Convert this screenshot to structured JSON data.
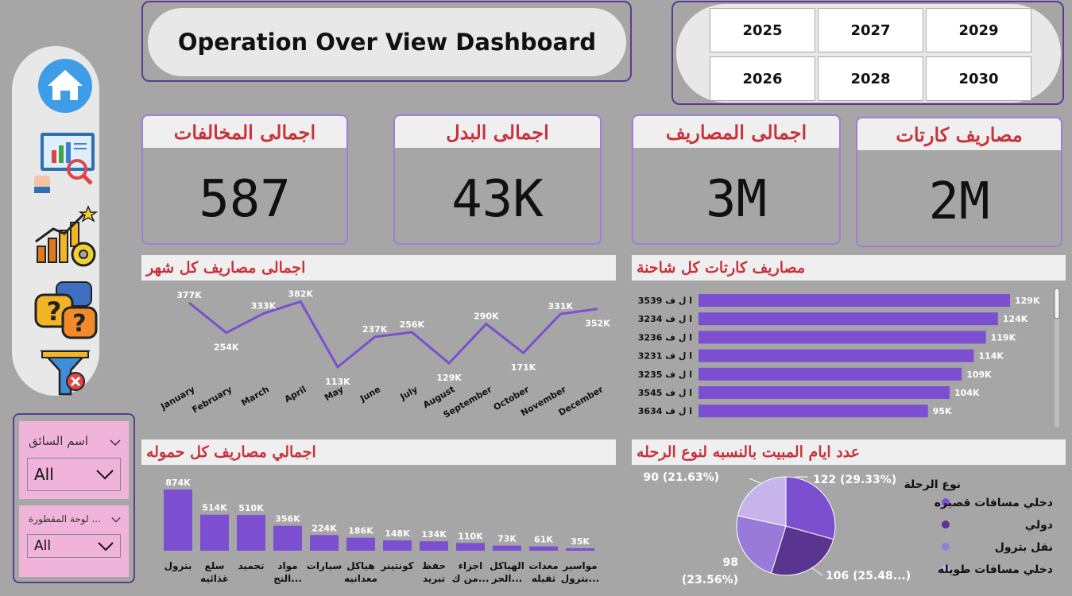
{
  "title": "Operation Over View Dashboard",
  "years": [
    "2025",
    "2027",
    "2029",
    "2026",
    "2028",
    "2030"
  ],
  "nav": [
    "home-icon",
    "report-icon",
    "growth-chart-icon",
    "help-chat-icon",
    "clear-filter-icon"
  ],
  "kpis": [
    {
      "label": "اجمالى المخالفات",
      "value": "587"
    },
    {
      "label": "اجمالى البدل",
      "value": "43K"
    },
    {
      "label": "اجمالى المصاريف",
      "value": "3M"
    },
    {
      "label": "مصاريف كارتات",
      "value": "2M"
    }
  ],
  "line_section": {
    "title": "اجمالى مصاريف كل شهر"
  },
  "hbar_section": {
    "title": "مصاريف كارتات كل شاحنة"
  },
  "vbar_section": {
    "title": "اجمالي مصاريف كل حموله"
  },
  "pie_section": {
    "title": "عدد ايام المبيت بالنسبه لنوع الرحله"
  },
  "slicers": {
    "driver": {
      "label": "اسم السائق",
      "value": "All"
    },
    "trailer": {
      "label": "لوحة المقطورة ...",
      "value": "All"
    }
  },
  "colors": {
    "accent": "#7b4fd0",
    "title_red": "#c8323c",
    "border": "#5a3d8f",
    "slicer": "#f0b3da"
  },
  "chart_data": [
    {
      "type": "line",
      "title": "اجمالى مصاريف كل شهر",
      "categories": [
        "January",
        "February",
        "March",
        "April",
        "May",
        "June",
        "July",
        "August",
        "September",
        "October",
        "November",
        "December"
      ],
      "values": [
        377,
        254,
        333,
        382,
        113,
        237,
        256,
        129,
        290,
        171,
        331,
        352
      ],
      "labels": [
        "377K",
        "254K",
        "333K",
        "382K",
        "113K",
        "237K",
        "256K",
        "129K",
        "290K",
        "171K",
        "331K",
        "352K"
      ],
      "ylim": [
        80,
        400
      ]
    },
    {
      "type": "bar",
      "orientation": "horizontal",
      "title": "مصاريف كارتات كل شاحنة",
      "categories": [
        "ا ل ف 3539",
        "ا ل ف 3234",
        "ا ل ف 3236",
        "ا ل ف 3231",
        "ا ل ف 3235",
        "ا ل ف 3545",
        "ا ل ف 3634"
      ],
      "values": [
        129,
        124,
        119,
        114,
        109,
        104,
        95
      ],
      "labels": [
        "129K",
        "124K",
        "119K",
        "114K",
        "109K",
        "104K",
        "95K"
      ],
      "xlim": [
        0,
        129
      ]
    },
    {
      "type": "bar",
      "title": "اجمالي مصاريف كل حموله",
      "categories": [
        "بترول",
        "سلع غذائيه",
        "تجميد",
        "مواد التج...",
        "سيارات",
        "هياكل معدانيه",
        "كونتينر",
        "حفظ تبريد",
        "اجزاء من ك...",
        "الهياكل الحر...",
        "معدات ثقيله",
        "مواسير بترول..."
      ],
      "values": [
        874,
        514,
        510,
        356,
        224,
        186,
        148,
        134,
        110,
        73,
        61,
        35
      ],
      "labels": [
        "874K",
        "514K",
        "510K",
        "356K",
        "224K",
        "186K",
        "148K",
        "134K",
        "110K",
        "73K",
        "61K",
        "35K"
      ],
      "ylim": [
        0,
        874
      ]
    },
    {
      "type": "pie",
      "title": "عدد ايام المبيت بالنسبه لنوع الرحله",
      "legend_title": "نوع الرحلة",
      "slices": [
        {
          "name": "دخلي مسافات قصيره",
          "value": 122,
          "label": "122 (29.33%)",
          "color": "#7b4fd0"
        },
        {
          "name": "دولي",
          "value": 106,
          "label": "106 (25.48...)",
          "color": "#5a3590"
        },
        {
          "name": "نقل بترول",
          "value": 98,
          "label": "98 (23.56%)",
          "color": "#9a7ad8"
        },
        {
          "name": "دخلي مسافات طويله",
          "value": 90,
          "label": "90 (21.63%)",
          "color": "#c6b4ea"
        }
      ]
    }
  ]
}
